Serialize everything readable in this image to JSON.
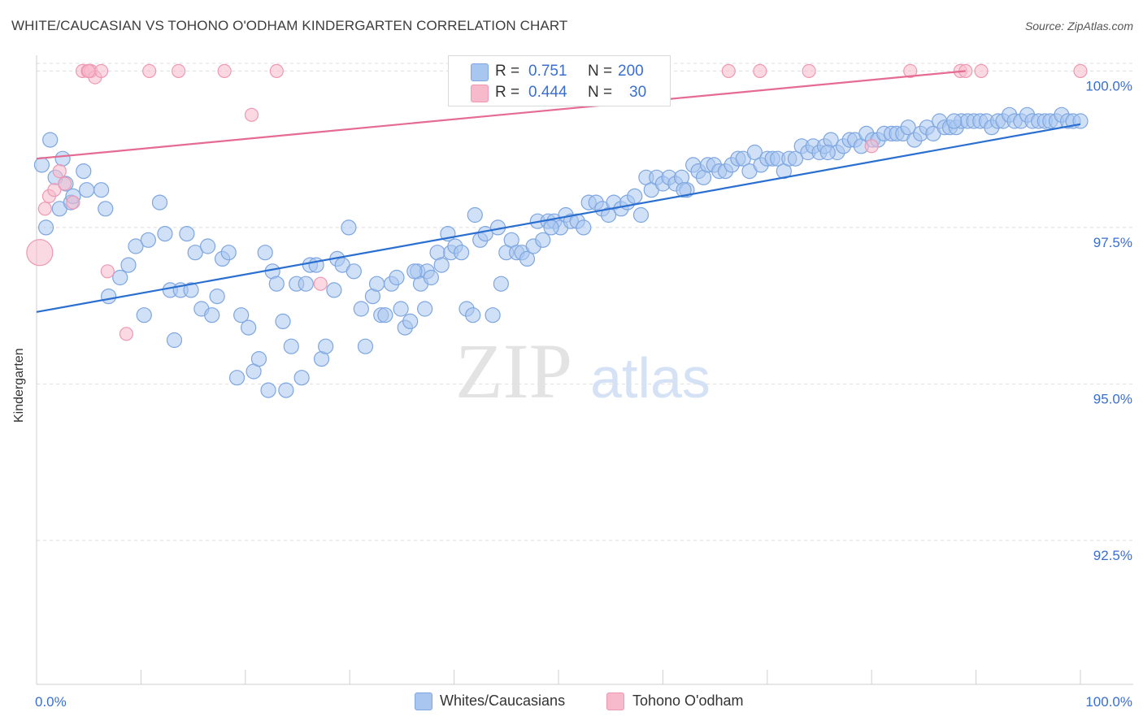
{
  "header": {
    "title": "WHITE/CAUCASIAN VS TOHONO O'ODHAM KINDERGARTEN CORRELATION CHART",
    "source": "Source: ZipAtlas.com"
  },
  "legend": {
    "series": [
      {
        "name": "Whites/Caucasians",
        "r_label": "R =",
        "r_value": "0.751",
        "n_label": "N =",
        "n_value": "200"
      },
      {
        "name": "Tohono O'odham",
        "r_label": "R =",
        "r_value": "0.444",
        "n_label": "N =",
        "n_value": "30"
      }
    ]
  },
  "watermark": {
    "zip": "ZIP",
    "atlas": "atlas"
  },
  "colors": {
    "blue_fill": "#a9c6f0",
    "blue_stroke": "#7ea6e0",
    "blue_line": "#2a6fd0",
    "pink_fill": "#f7b9cc",
    "pink_stroke": "#ee98b2",
    "pink_line": "#e56b93",
    "tick_text": "#3a6fd0",
    "grid": "#dedede"
  },
  "chart_data": {
    "type": "scatter",
    "title": "WHITE/CAUCASIAN VS TOHONO O'ODHAM KINDERGARTEN CORRELATION CHART",
    "xlabel": "",
    "ylabel": "Kindergarten",
    "xlim": [
      0,
      100
    ],
    "ylim": [
      90.2,
      100.2
    ],
    "x_tick_labels": [
      "0.0%",
      "100.0%"
    ],
    "y_ticks": [
      92.5,
      95.0,
      97.5,
      100.0
    ],
    "y_tick_labels": [
      "92.5%",
      "95.0%",
      "97.5%",
      "100.0%"
    ],
    "series": [
      {
        "name": "Whites/Caucasians",
        "r": 0.751,
        "n": 200,
        "trend": {
          "x": [
            0,
            100
          ],
          "y": [
            96.15,
            99.15
          ]
        },
        "points": [
          [
            0.5,
            98.5
          ],
          [
            0.9,
            97.5
          ],
          [
            1.3,
            98.9
          ],
          [
            1.8,
            98.3
          ],
          [
            2.2,
            97.8
          ],
          [
            2.5,
            98.6
          ],
          [
            2.8,
            98.2
          ],
          [
            3.3,
            97.9
          ],
          [
            3.5,
            98.0
          ],
          [
            4.5,
            98.4
          ],
          [
            4.8,
            98.1
          ],
          [
            6.2,
            98.1
          ],
          [
            6.6,
            97.8
          ],
          [
            6.9,
            96.4
          ],
          [
            8.8,
            96.9
          ],
          [
            9.5,
            97.2
          ],
          [
            8.0,
            96.7
          ],
          [
            10.3,
            96.1
          ],
          [
            10.7,
            97.3
          ],
          [
            11.8,
            97.9
          ],
          [
            12.3,
            97.4
          ],
          [
            12.8,
            96.5
          ],
          [
            13.2,
            95.7
          ],
          [
            13.8,
            96.5
          ],
          [
            14.4,
            97.4
          ],
          [
            14.8,
            96.5
          ],
          [
            15.2,
            97.1
          ],
          [
            15.8,
            96.2
          ],
          [
            16.4,
            97.2
          ],
          [
            16.8,
            96.1
          ],
          [
            17.3,
            96.4
          ],
          [
            17.8,
            97.0
          ],
          [
            18.4,
            97.1
          ],
          [
            19.2,
            95.1
          ],
          [
            19.6,
            96.1
          ],
          [
            20.3,
            95.9
          ],
          [
            20.8,
            95.2
          ],
          [
            21.3,
            95.4
          ],
          [
            21.9,
            97.1
          ],
          [
            22.2,
            94.9
          ],
          [
            22.6,
            96.8
          ],
          [
            23.0,
            96.6
          ],
          [
            23.6,
            96.0
          ],
          [
            23.9,
            94.9
          ],
          [
            24.4,
            95.6
          ],
          [
            24.9,
            96.6
          ],
          [
            25.4,
            95.1
          ],
          [
            25.8,
            96.6
          ],
          [
            26.2,
            96.9
          ],
          [
            26.8,
            96.9
          ],
          [
            27.3,
            95.4
          ],
          [
            27.7,
            95.6
          ],
          [
            28.5,
            96.5
          ],
          [
            28.8,
            97.0
          ],
          [
            29.3,
            96.9
          ],
          [
            29.9,
            97.5
          ],
          [
            30.4,
            96.8
          ],
          [
            31.1,
            96.2
          ],
          [
            31.5,
            95.6
          ],
          [
            32.2,
            96.4
          ],
          [
            32.6,
            96.6
          ],
          [
            33.0,
            96.1
          ],
          [
            33.4,
            96.1
          ],
          [
            34.0,
            96.6
          ],
          [
            34.5,
            96.7
          ],
          [
            34.9,
            96.2
          ],
          [
            35.3,
            95.9
          ],
          [
            35.8,
            96.0
          ],
          [
            36.5,
            96.8
          ],
          [
            36.8,
            96.6
          ],
          [
            37.4,
            96.8
          ],
          [
            37.8,
            96.7
          ],
          [
            38.4,
            97.1
          ],
          [
            38.8,
            96.9
          ],
          [
            39.4,
            97.4
          ],
          [
            39.7,
            97.1
          ],
          [
            40.1,
            97.2
          ],
          [
            40.7,
            97.1
          ],
          [
            41.2,
            96.2
          ],
          [
            41.8,
            96.1
          ],
          [
            42.0,
            97.7
          ],
          [
            42.5,
            97.3
          ],
          [
            43.0,
            97.4
          ],
          [
            43.7,
            96.1
          ],
          [
            44.2,
            97.5
          ],
          [
            44.5,
            96.6
          ],
          [
            45.0,
            97.1
          ],
          [
            45.5,
            97.3
          ],
          [
            46.0,
            97.1
          ],
          [
            46.5,
            97.1
          ],
          [
            47.0,
            97.0
          ],
          [
            47.6,
            97.2
          ],
          [
            48.0,
            97.6
          ],
          [
            48.5,
            97.3
          ],
          [
            49.0,
            97.6
          ],
          [
            49.6,
            97.6
          ],
          [
            50.2,
            97.5
          ],
          [
            50.7,
            97.7
          ],
          [
            51.2,
            97.6
          ],
          [
            51.8,
            97.6
          ],
          [
            52.4,
            97.5
          ],
          [
            52.9,
            97.9
          ],
          [
            53.6,
            97.9
          ],
          [
            54.2,
            97.8
          ],
          [
            54.8,
            97.7
          ],
          [
            55.3,
            97.9
          ],
          [
            56.0,
            97.8
          ],
          [
            56.6,
            97.9
          ],
          [
            57.3,
            98.0
          ],
          [
            57.9,
            97.7
          ],
          [
            58.4,
            98.3
          ],
          [
            58.9,
            98.1
          ],
          [
            59.4,
            98.3
          ],
          [
            60.0,
            98.2
          ],
          [
            60.6,
            98.3
          ],
          [
            61.2,
            98.2
          ],
          [
            61.8,
            98.3
          ],
          [
            62.3,
            98.1
          ],
          [
            62.9,
            98.5
          ],
          [
            63.4,
            98.4
          ],
          [
            63.9,
            98.3
          ],
          [
            64.3,
            98.5
          ],
          [
            64.9,
            98.5
          ],
          [
            65.4,
            98.4
          ],
          [
            66.0,
            98.4
          ],
          [
            66.6,
            98.5
          ],
          [
            67.2,
            98.6
          ],
          [
            67.7,
            98.6
          ],
          [
            68.3,
            98.4
          ],
          [
            68.8,
            98.7
          ],
          [
            69.4,
            98.5
          ],
          [
            70.0,
            98.6
          ],
          [
            70.5,
            98.6
          ],
          [
            71.0,
            98.6
          ],
          [
            71.6,
            98.4
          ],
          [
            72.1,
            98.6
          ],
          [
            72.7,
            98.6
          ],
          [
            73.3,
            98.8
          ],
          [
            73.9,
            98.7
          ],
          [
            74.4,
            98.8
          ],
          [
            75.0,
            98.7
          ],
          [
            75.5,
            98.8
          ],
          [
            76.1,
            98.9
          ],
          [
            76.7,
            98.7
          ],
          [
            77.3,
            98.8
          ],
          [
            77.9,
            98.9
          ],
          [
            78.4,
            98.9
          ],
          [
            79.0,
            98.8
          ],
          [
            79.5,
            99.0
          ],
          [
            80.1,
            98.9
          ],
          [
            80.6,
            98.9
          ],
          [
            81.2,
            99.0
          ],
          [
            81.9,
            99.0
          ],
          [
            82.4,
            99.0
          ],
          [
            83.0,
            99.0
          ],
          [
            83.5,
            99.1
          ],
          [
            84.1,
            98.9
          ],
          [
            84.7,
            99.0
          ],
          [
            85.3,
            99.1
          ],
          [
            85.9,
            99.0
          ],
          [
            86.5,
            99.2
          ],
          [
            87.0,
            99.1
          ],
          [
            87.5,
            99.1
          ],
          [
            88.1,
            99.1
          ],
          [
            88.6,
            99.2
          ],
          [
            89.2,
            99.2
          ],
          [
            89.8,
            99.2
          ],
          [
            90.4,
            99.2
          ],
          [
            91.0,
            99.2
          ],
          [
            91.5,
            99.1
          ],
          [
            92.1,
            99.2
          ],
          [
            92.6,
            99.2
          ],
          [
            93.2,
            99.3
          ],
          [
            93.7,
            99.2
          ],
          [
            94.3,
            99.2
          ],
          [
            94.9,
            99.3
          ],
          [
            95.4,
            99.2
          ],
          [
            96.0,
            99.2
          ],
          [
            96.6,
            99.2
          ],
          [
            97.1,
            99.2
          ],
          [
            97.7,
            99.2
          ],
          [
            98.2,
            99.3
          ],
          [
            98.8,
            99.2
          ],
          [
            99.3,
            99.2
          ],
          [
            100.0,
            99.2
          ],
          [
            37.2,
            96.2
          ],
          [
            49.3,
            97.5
          ],
          [
            62.0,
            98.1
          ],
          [
            75.8,
            98.7
          ],
          [
            87.9,
            99.2
          ],
          [
            36.2,
            96.8
          ]
        ]
      },
      {
        "name": "Tohono O'odham",
        "r": 0.444,
        "n": 30,
        "trend": {
          "x": [
            0,
            89
          ],
          "y": [
            98.6,
            100.0
          ]
        },
        "points": [
          [
            0.3,
            97.1
          ],
          [
            0.8,
            97.8
          ],
          [
            1.2,
            98.0
          ],
          [
            1.7,
            98.1
          ],
          [
            2.2,
            98.4
          ],
          [
            2.7,
            98.2
          ],
          [
            3.5,
            97.9
          ],
          [
            4.4,
            100.0
          ],
          [
            4.9,
            100.0
          ],
          [
            5.2,
            100.0
          ],
          [
            5.6,
            99.9
          ],
          [
            6.2,
            100.0
          ],
          [
            6.8,
            96.8
          ],
          [
            8.6,
            95.8
          ],
          [
            10.8,
            100.0
          ],
          [
            13.6,
            100.0
          ],
          [
            18.0,
            100.0
          ],
          [
            20.6,
            99.3
          ],
          [
            23.0,
            100.0
          ],
          [
            27.2,
            96.6
          ],
          [
            80.0,
            98.8
          ],
          [
            66.3,
            100.0
          ],
          [
            69.3,
            100.0
          ],
          [
            74.0,
            100.0
          ],
          [
            83.7,
            100.0
          ],
          [
            88.5,
            100.0
          ],
          [
            89.0,
            100.0
          ],
          [
            90.5,
            100.0
          ],
          [
            100.0,
            100.0
          ],
          [
            5.0,
            100.0
          ]
        ]
      }
    ]
  }
}
